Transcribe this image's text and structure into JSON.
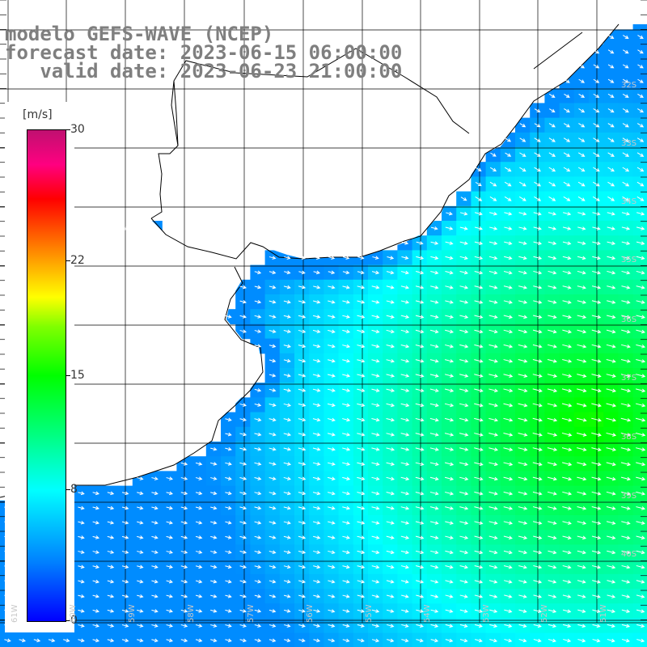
{
  "header": {
    "line1": "modelo GEFS-WAVE (NCEP)",
    "line2": "forecast date: 2023-06-15 06:00:00",
    "line3": "   valid date: 2023-06-23 21:00:00"
  },
  "legend": {
    "unit": "[m/s]",
    "ticks": [
      {
        "label": "30",
        "value": 30
      },
      {
        "label": "22",
        "value": 22
      },
      {
        "label": "15",
        "value": 15
      },
      {
        "label": "8",
        "value": 8
      },
      {
        "label": "0",
        "value": 0
      }
    ],
    "min": 0,
    "max": 30
  },
  "axes": {
    "lat_labels": [
      "32S",
      "33S",
      "34S",
      "35S",
      "36S",
      "37S",
      "38S",
      "39S",
      "40S"
    ],
    "lon_labels": [
      "61W",
      "60W",
      "59W",
      "58W",
      "57W",
      "56W",
      "55W",
      "54W",
      "53W",
      "52W",
      "51W"
    ]
  },
  "colors": {
    "land": "#ffffff",
    "coastline": "#000000",
    "grid": "#000000",
    "arrows": "#ffffff",
    "text": "#7f7f7f"
  },
  "field": {
    "variable": "wind speed",
    "units": "m/s",
    "region_speeds": [
      {
        "area": "near shore (west/north)",
        "value": 6
      },
      {
        "area": "central shelf",
        "value": 11
      },
      {
        "area": "open ocean east (around 37S-38S)",
        "value": 15
      }
    ]
  }
}
